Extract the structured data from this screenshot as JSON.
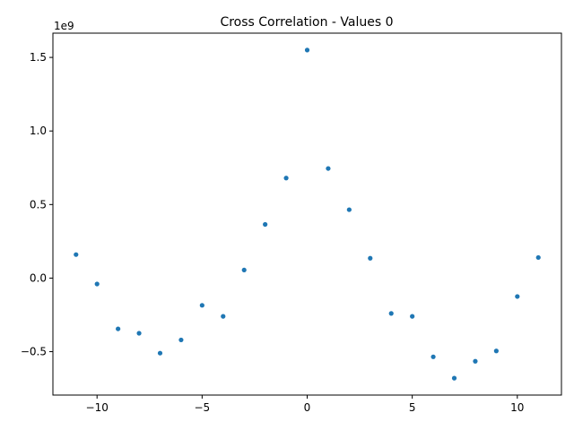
{
  "chart_data": {
    "type": "scatter",
    "title": "Cross Correlation - Values 0",
    "xlabel": "",
    "ylabel": "",
    "y_offset_label": "1e9",
    "xlim": [
      -12.1,
      12.1
    ],
    "ylim": [
      -0.795,
      1.665
    ],
    "x_ticks": [
      -10,
      -5,
      0,
      5,
      10
    ],
    "x_tick_labels": [
      "−10",
      "−5",
      "0",
      "5",
      "10"
    ],
    "y_ticks": [
      -0.5,
      0.0,
      0.5,
      1.0,
      1.5
    ],
    "y_tick_labels": [
      "−0.5",
      "0.0",
      "0.5",
      "1.0",
      "1.5"
    ],
    "grid": false,
    "marker_color": "#1f77b4",
    "x": [
      -11,
      -10,
      -9,
      -8,
      -7,
      -6,
      -5,
      -4,
      -3,
      -2,
      -1,
      0,
      1,
      2,
      3,
      4,
      5,
      6,
      7,
      8,
      9,
      10,
      11
    ],
    "y": [
      0.16,
      -0.04,
      -0.345,
      -0.375,
      -0.51,
      -0.42,
      -0.185,
      -0.26,
      0.055,
      0.365,
      0.68,
      1.55,
      0.745,
      0.465,
      0.135,
      -0.24,
      -0.26,
      -0.535,
      -0.68,
      -0.565,
      -0.495,
      -0.125,
      0.14
    ]
  }
}
